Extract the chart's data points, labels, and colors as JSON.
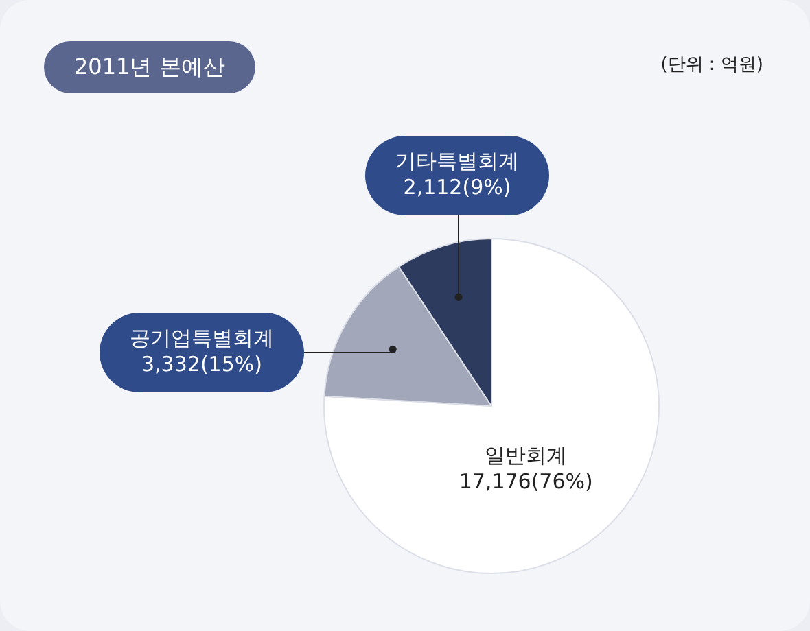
{
  "chart_data": {
    "type": "pie",
    "title": "2011년 본예산",
    "annotations": [
      "(단위 : 억원)"
    ],
    "categories": [
      "일반회계",
      "공기업특별회계",
      "기타특별회계"
    ],
    "values": [
      17176,
      3332,
      2112
    ],
    "colors": [
      "#ffffff",
      "#a3a7ba",
      "#2c3b5e"
    ],
    "value_labels": [
      "17,176(76%)",
      "3,332(15%)",
      "2,112(9%)"
    ],
    "legend": false
  }
}
